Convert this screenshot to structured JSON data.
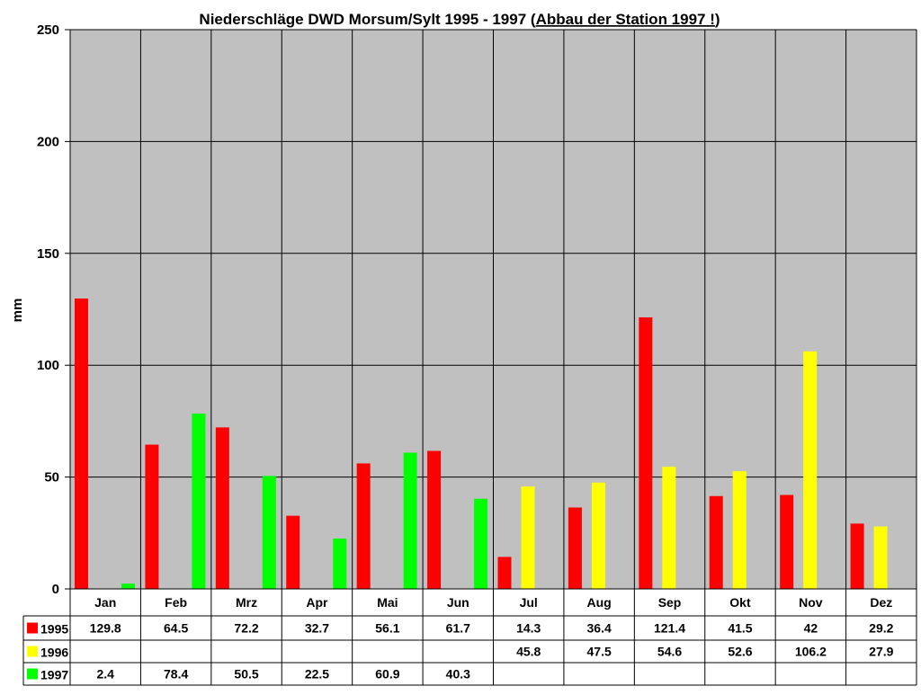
{
  "chart_data": {
    "type": "bar",
    "title": "Niederschläge DWD Morsum/Sylt 1995 - 1997 (",
    "title_underlined": "Abbau der Station 1997 !",
    "title_end": ")",
    "ylabel": "mm",
    "xlabel": "",
    "ylim": [
      0,
      250
    ],
    "yticks": [
      "0",
      "50",
      "100",
      "150",
      "200",
      "250"
    ],
    "grid": true,
    "legend": "data-table-left",
    "plot_background": "#C0C0C0",
    "categories": [
      "Jan",
      "Feb",
      "Mrz",
      "Apr",
      "Mai",
      "Jun",
      "Jul",
      "Aug",
      "Sep",
      "Okt",
      "Nov",
      "Dez"
    ],
    "series": [
      {
        "name": "1995",
        "color": "#FF0000",
        "values": [
          129.8,
          64.5,
          72.2,
          32.7,
          56.1,
          61.7,
          14.3,
          36.4,
          121.4,
          41.5,
          42,
          29.2
        ]
      },
      {
        "name": "1996",
        "color": "#FFFF00",
        "values": [
          null,
          null,
          null,
          null,
          null,
          null,
          45.8,
          47.5,
          54.6,
          52.6,
          106.2,
          27.9
        ]
      },
      {
        "name": "1997",
        "color": "#00FF00",
        "values": [
          2.4,
          78.4,
          50.5,
          22.5,
          60.9,
          40.3,
          null,
          null,
          null,
          null,
          null,
          null
        ]
      }
    ],
    "table_labels": [
      [
        "129.8",
        "64.5",
        "72.2",
        "32.7",
        "56.1",
        "61.7",
        "14.3",
        "36.4",
        "121.4",
        "41.5",
        "42",
        "29.2"
      ],
      [
        "",
        "",
        "",
        "",
        "",
        "",
        "45.8",
        "47.5",
        "54.6",
        "52.6",
        "106.2",
        "27.9"
      ],
      [
        "2.4",
        "78.4",
        "50.5",
        "22.5",
        "60.9",
        "40.3",
        "",
        "",
        "",
        "",
        "",
        ""
      ]
    ]
  }
}
